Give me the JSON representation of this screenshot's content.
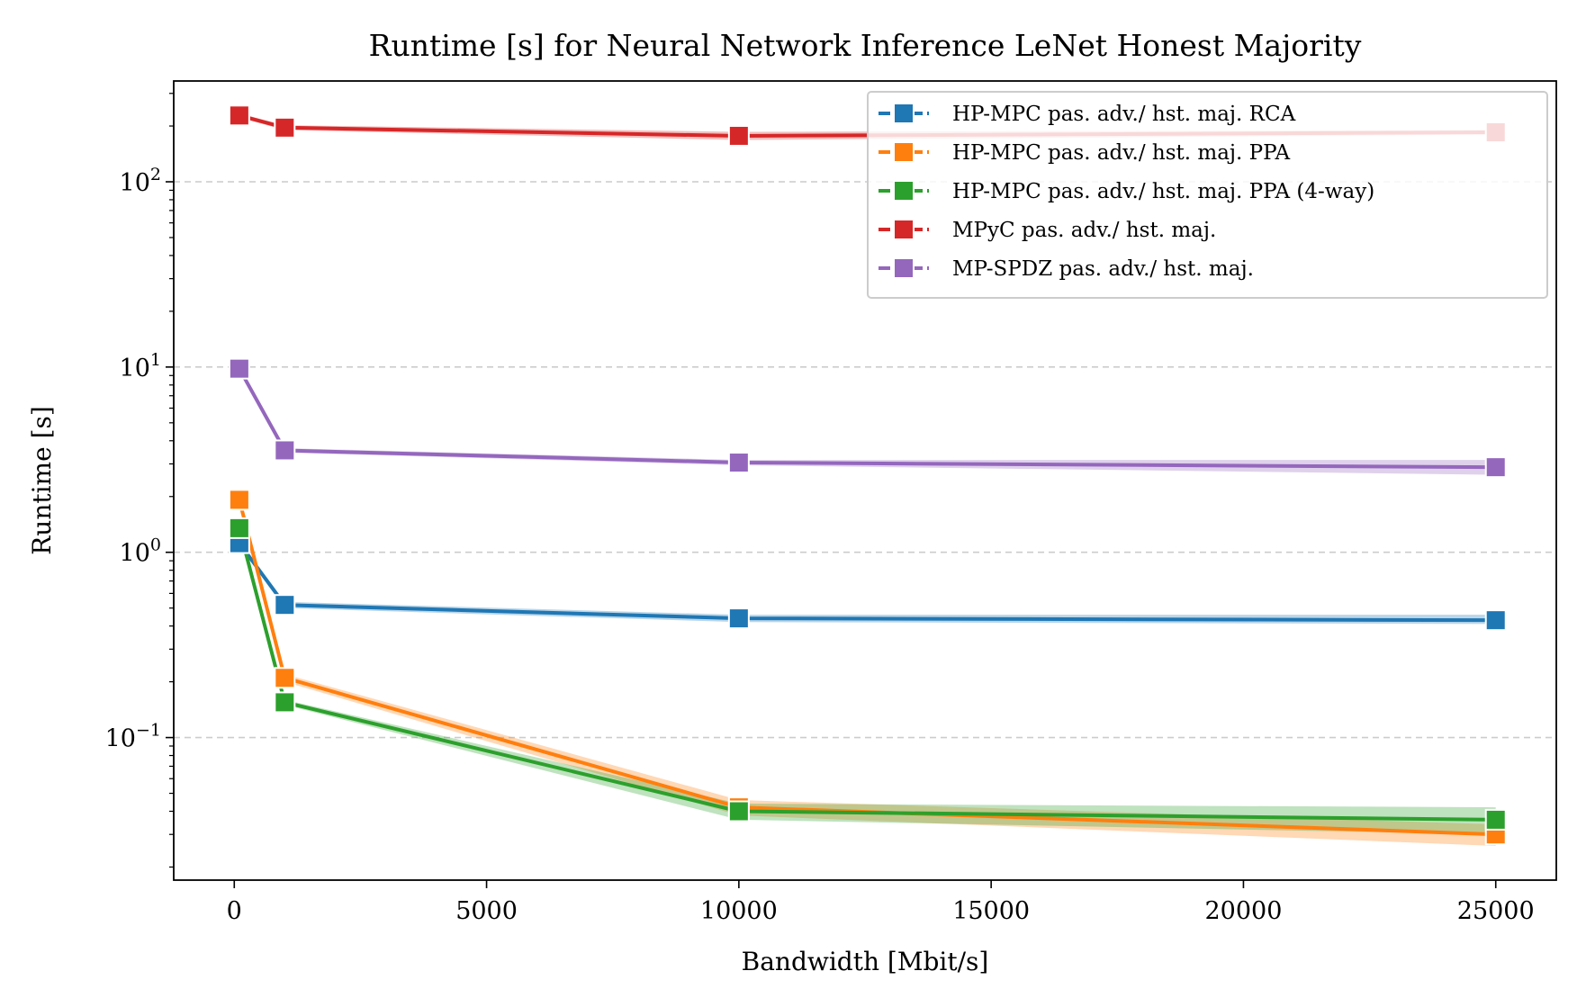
{
  "chart_data": {
    "type": "line",
    "title": "Runtime [s] for Neural Network Inference LeNet Honest Majority",
    "xlabel": "Bandwidth [Mbit/s]",
    "ylabel": "Runtime [s]",
    "xlim": [
      -1200,
      26200
    ],
    "ylim": [
      0.017,
      350
    ],
    "yscale": "log",
    "grid": "y-major-dashed",
    "legend_position": "top-right",
    "x_ticks": [
      {
        "value": 0,
        "label": "0"
      },
      {
        "value": 5000,
        "label": "5000"
      },
      {
        "value": 10000,
        "label": "10000"
      },
      {
        "value": 15000,
        "label": "15000"
      },
      {
        "value": 20000,
        "label": "20000"
      },
      {
        "value": 25000,
        "label": "25000"
      }
    ],
    "y_ticks": [
      {
        "value": 0.1,
        "base": "10",
        "exp": "−1"
      },
      {
        "value": 1,
        "base": "10",
        "exp": "0"
      },
      {
        "value": 10,
        "base": "10",
        "exp": "1"
      },
      {
        "value": 100,
        "base": "10",
        "exp": "2"
      }
    ],
    "series": [
      {
        "name": "HP-MPC pas. adv./ hst. maj. RCA",
        "color": "#1f77b4",
        "x": [
          100,
          1000,
          10000,
          25000
        ],
        "values": [
          1.12,
          0.52,
          0.44,
          0.43
        ],
        "band_low": [
          1.08,
          0.5,
          0.42,
          0.41
        ],
        "band_high": [
          1.16,
          0.54,
          0.46,
          0.46
        ]
      },
      {
        "name": "HP-MPC pas. adv./ hst. maj. PPA",
        "color": "#ff7f0e",
        "x": [
          100,
          1000,
          10000,
          25000
        ],
        "values": [
          1.92,
          0.21,
          0.042,
          0.03
        ],
        "band_low": [
          1.85,
          0.2,
          0.038,
          0.026
        ],
        "band_high": [
          2.0,
          0.22,
          0.046,
          0.034
        ]
      },
      {
        "name": "HP-MPC pas. adv./ hst. maj. PPA (4-way)",
        "color": "#2ca02c",
        "x": [
          100,
          1000,
          10000,
          25000
        ],
        "values": [
          1.35,
          0.155,
          0.04,
          0.036
        ],
        "band_low": [
          1.3,
          0.15,
          0.036,
          0.03
        ],
        "band_high": [
          1.4,
          0.16,
          0.044,
          0.042
        ]
      },
      {
        "name": "MPyC pas. adv./ hst. maj.",
        "color": "#d62728",
        "x": [
          100,
          1000,
          10000,
          25000
        ],
        "values": [
          228,
          196,
          177,
          185
        ],
        "band_low": [
          222,
          190,
          168,
          180
        ],
        "band_high": [
          234,
          202,
          186,
          190
        ]
      },
      {
        "name": "MP-SPDZ pas. adv./ hst. maj.",
        "color": "#9467bd",
        "x": [
          100,
          1000,
          10000,
          25000
        ],
        "values": [
          9.8,
          3.55,
          3.05,
          2.88
        ],
        "band_low": [
          9.6,
          3.45,
          2.95,
          2.62
        ],
        "band_high": [
          10.0,
          3.65,
          3.15,
          3.15
        ]
      }
    ]
  }
}
